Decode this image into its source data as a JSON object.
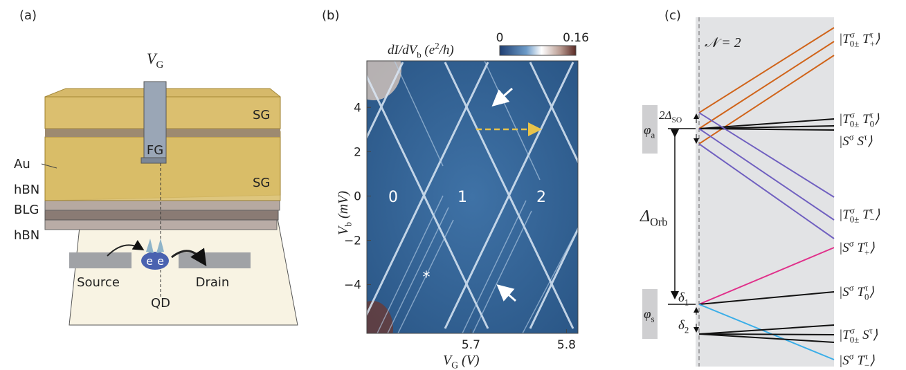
{
  "panel_a": {
    "label": "(a)",
    "gate": [
      {
        "t": "V"
      },
      {
        "sub": "G"
      }
    ],
    "sg_top": "SG",
    "fg": "FG",
    "sg_bottom": "SG",
    "layers": [
      "Au",
      "hBN",
      "BLG",
      "hBN"
    ],
    "electrons": [
      "e",
      "e"
    ],
    "source": "Source",
    "drain": "Drain",
    "qd": "QD"
  },
  "panel_b": {
    "label": "(b)",
    "colorbar": {
      "label": [
        {
          "t": "dI/dV"
        },
        {
          "sub": "b"
        },
        {
          "t": " (e"
        },
        {
          "sup": "2"
        },
        {
          "t": "/h)"
        }
      ],
      "clim": [
        0,
        0.16
      ],
      "ticks": [
        0,
        0.16
      ]
    },
    "ylabel": [
      {
        "t": "V"
      },
      {
        "sub": "b"
      },
      {
        "t": " (mV)"
      }
    ],
    "xlabel": [
      {
        "t": "V"
      },
      {
        "sub": "G"
      },
      {
        "t": " (V)"
      }
    ],
    "xlim": [
      5.591,
      5.812
    ],
    "xticks": [
      5.7,
      5.8
    ],
    "ylim": [
      -6.2,
      6.1
    ],
    "yticks": [
      4,
      2,
      0,
      {
        "value": -2,
        "label": "−2"
      },
      {
        "value": -4,
        "label": "−4"
      }
    ],
    "regions": [
      "0",
      "1",
      "2"
    ],
    "star": "*"
  },
  "panel_c": {
    "label": "(c)",
    "n": "𝒩 = 2",
    "states": [
      [
        {
          "t": "|T"
        },
        {
          "sup": "σ"
        },
        {
          "sub": "0±"
        },
        {
          "t": " T"
        },
        {
          "sup": "τ"
        },
        {
          "sub": "+"
        },
        {
          "t": "⟩"
        }
      ],
      [
        {
          "t": "|T"
        },
        {
          "sup": "σ"
        },
        {
          "sub": "0±"
        },
        {
          "t": " T"
        },
        {
          "sup": "τ"
        },
        {
          "sub": "0"
        },
        {
          "t": "⟩"
        }
      ],
      [
        {
          "t": "|S"
        },
        {
          "sup": "σ"
        },
        {
          "t": " S"
        },
        {
          "sup": "τ"
        },
        {
          "t": "⟩"
        }
      ],
      [
        {
          "t": "|T"
        },
        {
          "sup": "σ"
        },
        {
          "sub": "0±"
        },
        {
          "t": " T"
        },
        {
          "sup": "τ"
        },
        {
          "sub": "−"
        },
        {
          "t": "⟩"
        }
      ],
      [
        {
          "t": "|S"
        },
        {
          "sup": "σ"
        },
        {
          "t": " T"
        },
        {
          "sup": "τ"
        },
        {
          "sub": "+"
        },
        {
          "t": "⟩"
        }
      ],
      [
        {
          "t": "|S"
        },
        {
          "sup": "σ"
        },
        {
          "t": " T"
        },
        {
          "sup": "τ"
        },
        {
          "sub": "0"
        },
        {
          "t": "⟩"
        }
      ],
      [
        {
          "t": "|T"
        },
        {
          "sup": "σ"
        },
        {
          "sub": "0±"
        },
        {
          "t": " S"
        },
        {
          "sup": "τ"
        },
        {
          "t": "⟩"
        }
      ],
      [
        {
          "t": "|S"
        },
        {
          "sup": "σ"
        },
        {
          "t": " T"
        },
        {
          "sup": "τ"
        },
        {
          "sub": "−"
        },
        {
          "t": "⟩"
        }
      ]
    ],
    "delta_so": [
      {
        "t": "2Δ"
      },
      {
        "sub": "SO"
      }
    ],
    "phi_a": [
      {
        "t": "φ"
      },
      {
        "sub": "a"
      }
    ],
    "delta_orb": [
      {
        "t": "Δ"
      },
      {
        "sub": "Orb"
      }
    ],
    "delta_1": [
      {
        "t": "δ"
      },
      {
        "sub": "1"
      }
    ],
    "phi_s": [
      {
        "t": "φ"
      },
      {
        "sub": "s"
      }
    ],
    "delta_2": [
      {
        "t": "δ"
      },
      {
        "sub": "2"
      }
    ]
  }
}
